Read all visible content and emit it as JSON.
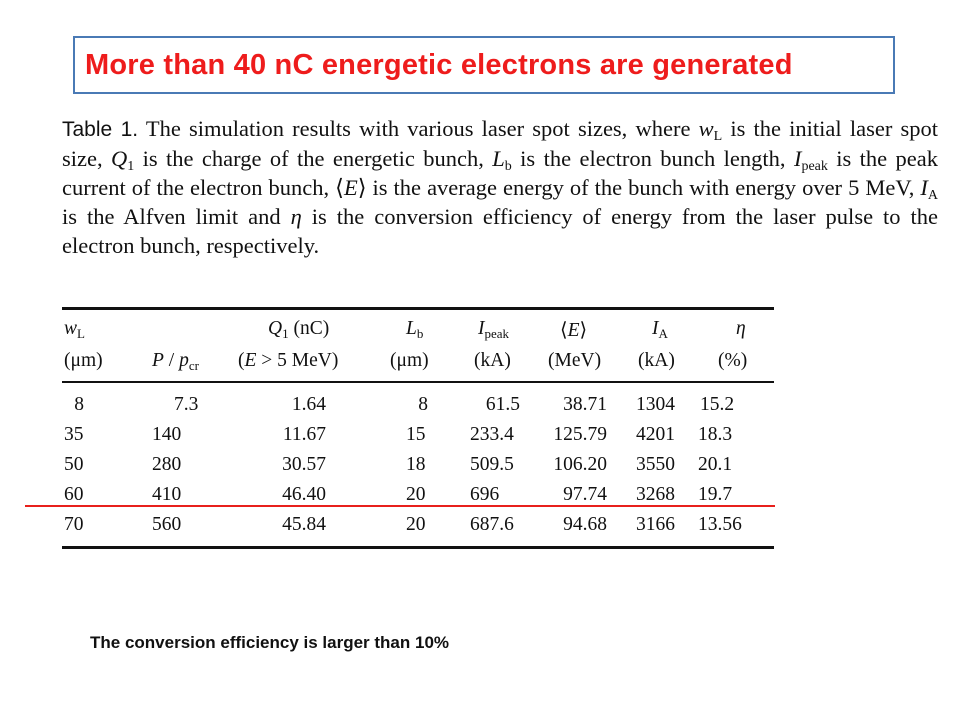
{
  "slide": {
    "title": "More than 40 nC energetic electrons are generated",
    "footer": "The conversion efficiency is larger than 10%"
  },
  "caption": {
    "label": "Table 1.",
    "p1": " The simulation results with various laser spot sizes, where ",
    "wL_sym": "w",
    "wL_sub": "L",
    "p2": " is the initial laser spot size, ",
    "Q1_sym": "Q",
    "Q1_sub": "1",
    "p3": " is the charge of the energetic bunch, ",
    "Lb_sym": "L",
    "Lb_sub": "b",
    "p4": " is the electron bunch length, ",
    "Ipeak_sym": "I",
    "Ipeak_sub": "peak",
    "p5": " is the peak current of the electron bunch, ⟨",
    "E_sym": "E",
    "p6": "⟩ is the average energy of the bunch with energy over 5 MeV, ",
    "IA_sym": "I",
    "IA_sub": "A",
    "p7": " is the Alfven limit and ",
    "eta_sym": "η",
    "p8": " is the conversion efficiency of energy from the laser pulse to the electron bunch, respectively."
  },
  "table": {
    "headers": {
      "wL": {
        "sym": "w",
        "sub": "L",
        "unit": "(μm)"
      },
      "P": {
        "sym1": "P",
        "slash": " / ",
        "sym2": "p",
        "sub": "cr"
      },
      "Q1": {
        "sym": "Q",
        "sub": "1",
        "unit": " (nC)",
        "cond_pre": "(",
        "cond_sym": "E",
        "cond_post": " > 5 MeV)"
      },
      "Lb": {
        "sym": "L",
        "sub": "b",
        "unit": "(μm)"
      },
      "Ipeak": {
        "sym": "I",
        "sub": "peak",
        "unit": "(kA)"
      },
      "E": {
        "pre": "⟨",
        "sym": "E",
        "post": "⟩",
        "unit": "(MeV)"
      },
      "IA": {
        "sym": "I",
        "sub": "A",
        "unit": "(kA)"
      },
      "eta": {
        "sym": "η",
        "unit": "(%)"
      }
    },
    "rows": [
      [
        "8",
        "7.3",
        "1.64",
        "8",
        "61.5",
        "38.71",
        "1304",
        "15.2"
      ],
      [
        "35",
        "140",
        "11.67",
        "15",
        "233.4",
        "125.79",
        "4201",
        "18.3"
      ],
      [
        "50",
        "280",
        "30.57",
        "18",
        "509.5",
        "106.20",
        "3550",
        "20.1"
      ],
      [
        "60",
        "410",
        "46.40",
        "20",
        "696",
        "97.74",
        "3268",
        "19.7"
      ],
      [
        "70",
        "560",
        "45.84",
        "20",
        "687.6",
        "94.68",
        "3166",
        "13.56"
      ]
    ]
  },
  "colors": {
    "title": "#ee1c1c",
    "title_border": "#4a7ab5",
    "highlight_line": "#e8201c"
  }
}
